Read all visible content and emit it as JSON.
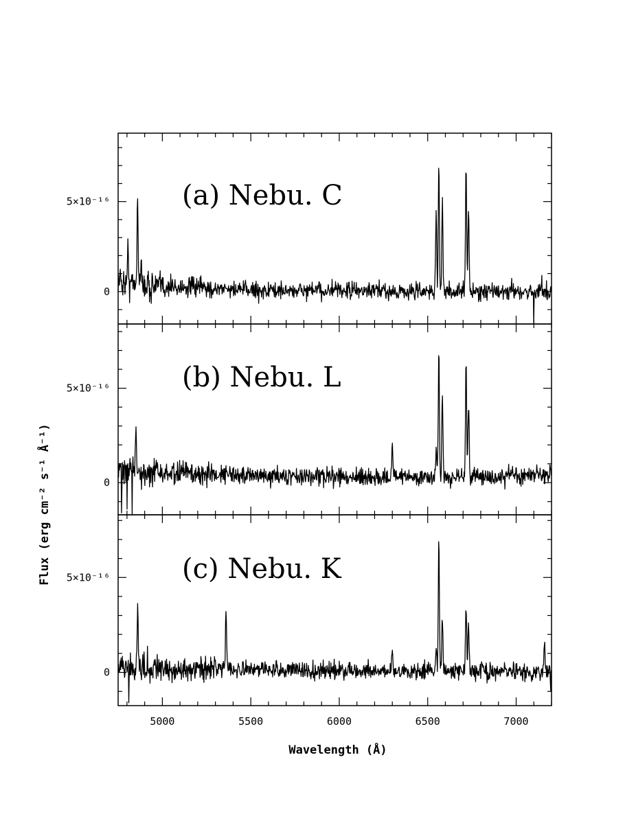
{
  "chart_data": {
    "type": "line",
    "xlabel": "Wavelength (Å)",
    "ylabel": "Flux (erg cm⁻² s⁻¹ Å⁻¹)",
    "xlim": [
      4750,
      7200
    ],
    "x_ticks": [
      5000,
      5500,
      6000,
      6500,
      7000
    ],
    "x_tick_labels": [
      "5000",
      "5500",
      "6000",
      "6500",
      "7000"
    ],
    "y_tick_labels": [
      "0",
      "5×10⁻¹⁶"
    ],
    "grid": false,
    "legend": "none",
    "panels": [
      {
        "title": "(a) Nebu. C",
        "ylim": [
          -1.8e-16,
          8.8e-16
        ],
        "y_ticks": [
          0,
          5e-16
        ],
        "noise": 3.2e-17,
        "baseline": [
          [
            4750,
            6e-17
          ],
          [
            4950,
            3e-17
          ],
          [
            5200,
            2e-17
          ],
          [
            5600,
            5e-18
          ],
          [
            6000,
            5e-18
          ],
          [
            6500,
            0.0
          ],
          [
            7200,
            0.0
          ]
        ],
        "lines": [
          {
            "x": 4805,
            "peak": 1.6e-16
          },
          {
            "x": 4860,
            "peak": 4.8e-16
          },
          {
            "x": 4880,
            "peak": 1e-16
          },
          {
            "x": 6548,
            "peak": 4.5e-16
          },
          {
            "x": 6563,
            "peak": 7e-16
          },
          {
            "x": 6583,
            "peak": 5e-16
          },
          {
            "x": 6717,
            "peak": 6.9e-16
          },
          {
            "x": 6731,
            "peak": 4.6e-16
          }
        ],
        "spikes": [
          {
            "x": 7100,
            "value": -2.2e-16
          },
          {
            "x": 7145,
            "value": 9e-17
          }
        ]
      },
      {
        "title": "(b) Nebu. L",
        "ylim": [
          -1.7e-16,
          8.4e-16
        ],
        "y_ticks": [
          0,
          5e-16
        ],
        "noise": 3.2e-17,
        "baseline": [
          [
            4750,
            6e-17
          ],
          [
            5000,
            5e-17
          ],
          [
            5500,
            4e-17
          ],
          [
            6000,
            3e-17
          ],
          [
            6500,
            3e-17
          ],
          [
            7200,
            3.5e-17
          ]
        ],
        "lines": [
          {
            "x": 4850,
            "peak": 2.2e-16
          },
          {
            "x": 6300,
            "peak": 1.5e-16
          },
          {
            "x": 6548,
            "peak": 1.5e-16
          },
          {
            "x": 6563,
            "peak": 6.5e-16
          },
          {
            "x": 6583,
            "peak": 4.3e-16
          },
          {
            "x": 6717,
            "peak": 6e-16
          },
          {
            "x": 6731,
            "peak": 4e-16
          }
        ],
        "spikes": [
          {
            "x": 4770,
            "value": -1.6e-16
          },
          {
            "x": 4800,
            "value": -1.4e-16
          },
          {
            "x": 4830,
            "value": -1.7e-16
          }
        ]
      },
      {
        "title": "(c) Nebu. K",
        "ylim": [
          -1.75e-16,
          8.3e-16
        ],
        "y_ticks": [
          0,
          5e-16
        ],
        "noise": 3.2e-17,
        "baseline": [
          [
            4750,
            2.5e-17
          ],
          [
            5500,
            1.5e-17
          ],
          [
            6000,
            1e-17
          ],
          [
            6500,
            5e-18
          ],
          [
            7200,
            5e-18
          ]
        ],
        "lines": [
          {
            "x": 4861,
            "peak": 3e-16
          },
          {
            "x": 5360,
            "peak": 3.1e-16
          },
          {
            "x": 6300,
            "peak": 1.3e-16
          },
          {
            "x": 6548,
            "peak": 1.4e-16
          },
          {
            "x": 6563,
            "peak": 6.9e-16
          },
          {
            "x": 6583,
            "peak": 2.8e-16
          },
          {
            "x": 6717,
            "peak": 3.6e-16
          },
          {
            "x": 6731,
            "peak": 2.4e-16
          },
          {
            "x": 7160,
            "peak": 1.7e-16
          }
        ],
        "spikes": [
          {
            "x": 4810,
            "value": -1.6e-16
          },
          {
            "x": 7195,
            "value": -1e-16
          }
        ]
      }
    ]
  }
}
